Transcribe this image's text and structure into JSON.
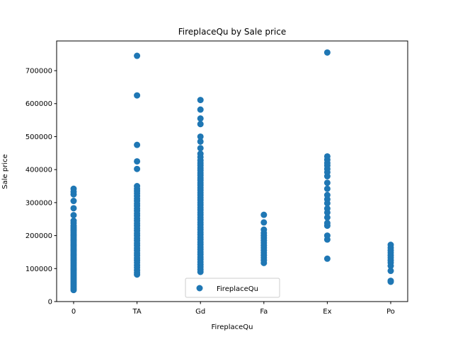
{
  "chart_data": {
    "type": "scatter",
    "title": "FireplaceQu by Sale price",
    "xlabel": "FireplaceQu",
    "ylabel": "Sale price",
    "categories": [
      "0",
      "TA",
      "Gd",
      "Fa",
      "Ex",
      "Po"
    ],
    "ylim": [
      0,
      790000
    ],
    "yticks": [
      0,
      100000,
      200000,
      300000,
      400000,
      500000,
      600000,
      700000
    ],
    "ytick_labels": [
      "0",
      "100000",
      "200000",
      "300000",
      "400000",
      "500000",
      "600000",
      "700000"
    ],
    "grid": false,
    "legend": {
      "position": "lower-center",
      "entries": [
        "FireplaceQu"
      ]
    },
    "colors": {
      "series": "#1f77b4"
    },
    "series": [
      {
        "name": "FireplaceQu",
        "points": [
          [
            "0",
            35000
          ],
          [
            "0",
            40000
          ],
          [
            "0",
            45000
          ],
          [
            "0",
            50000
          ],
          [
            "0",
            55000
          ],
          [
            "0",
            60000
          ],
          [
            "0",
            65000
          ],
          [
            "0",
            70000
          ],
          [
            "0",
            75000
          ],
          [
            "0",
            80000
          ],
          [
            "0",
            85000
          ],
          [
            "0",
            90000
          ],
          [
            "0",
            95000
          ],
          [
            "0",
            100000
          ],
          [
            "0",
            105000
          ],
          [
            "0",
            110000
          ],
          [
            "0",
            115000
          ],
          [
            "0",
            120000
          ],
          [
            "0",
            125000
          ],
          [
            "0",
            130000
          ],
          [
            "0",
            135000
          ],
          [
            "0",
            140000
          ],
          [
            "0",
            145000
          ],
          [
            "0",
            150000
          ],
          [
            "0",
            155000
          ],
          [
            "0",
            160000
          ],
          [
            "0",
            165000
          ],
          [
            "0",
            170000
          ],
          [
            "0",
            175000
          ],
          [
            "0",
            180000
          ],
          [
            "0",
            185000
          ],
          [
            "0",
            190000
          ],
          [
            "0",
            195000
          ],
          [
            "0",
            200000
          ],
          [
            "0",
            205000
          ],
          [
            "0",
            210000
          ],
          [
            "0",
            215000
          ],
          [
            "0",
            220000
          ],
          [
            "0",
            225000
          ],
          [
            "0",
            230000
          ],
          [
            "0",
            238000
          ],
          [
            "0",
            245000
          ],
          [
            "0",
            262000
          ],
          [
            "0",
            283000
          ],
          [
            "0",
            305000
          ],
          [
            "0",
            325000
          ],
          [
            "0",
            333000
          ],
          [
            "0",
            342000
          ],
          [
            "TA",
            82000
          ],
          [
            "TA",
            88000
          ],
          [
            "TA",
            95000
          ],
          [
            "TA",
            103000
          ],
          [
            "TA",
            110000
          ],
          [
            "TA",
            118000
          ],
          [
            "TA",
            125000
          ],
          [
            "TA",
            132000
          ],
          [
            "TA",
            140000
          ],
          [
            "TA",
            147000
          ],
          [
            "TA",
            155000
          ],
          [
            "TA",
            162000
          ],
          [
            "TA",
            170000
          ],
          [
            "TA",
            177000
          ],
          [
            "TA",
            185000
          ],
          [
            "TA",
            192000
          ],
          [
            "TA",
            200000
          ],
          [
            "TA",
            207000
          ],
          [
            "TA",
            215000
          ],
          [
            "TA",
            222000
          ],
          [
            "TA",
            230000
          ],
          [
            "TA",
            237000
          ],
          [
            "TA",
            245000
          ],
          [
            "TA",
            252000
          ],
          [
            "TA",
            260000
          ],
          [
            "TA",
            267000
          ],
          [
            "TA",
            275000
          ],
          [
            "TA",
            282000
          ],
          [
            "TA",
            290000
          ],
          [
            "TA",
            297000
          ],
          [
            "TA",
            305000
          ],
          [
            "TA",
            312000
          ],
          [
            "TA",
            320000
          ],
          [
            "TA",
            328000
          ],
          [
            "TA",
            335000
          ],
          [
            "TA",
            342000
          ],
          [
            "TA",
            350000
          ],
          [
            "TA",
            402000
          ],
          [
            "TA",
            425000
          ],
          [
            "TA",
            475000
          ],
          [
            "TA",
            625000
          ],
          [
            "TA",
            745000
          ],
          [
            "Gd",
            90000
          ],
          [
            "Gd",
            97000
          ],
          [
            "Gd",
            105000
          ],
          [
            "Gd",
            112000
          ],
          [
            "Gd",
            120000
          ],
          [
            "Gd",
            128000
          ],
          [
            "Gd",
            135000
          ],
          [
            "Gd",
            143000
          ],
          [
            "Gd",
            150000
          ],
          [
            "Gd",
            158000
          ],
          [
            "Gd",
            165000
          ],
          [
            "Gd",
            173000
          ],
          [
            "Gd",
            180000
          ],
          [
            "Gd",
            188000
          ],
          [
            "Gd",
            195000
          ],
          [
            "Gd",
            203000
          ],
          [
            "Gd",
            210000
          ],
          [
            "Gd",
            218000
          ],
          [
            "Gd",
            225000
          ],
          [
            "Gd",
            233000
          ],
          [
            "Gd",
            240000
          ],
          [
            "Gd",
            248000
          ],
          [
            "Gd",
            255000
          ],
          [
            "Gd",
            263000
          ],
          [
            "Gd",
            270000
          ],
          [
            "Gd",
            278000
          ],
          [
            "Gd",
            285000
          ],
          [
            "Gd",
            293000
          ],
          [
            "Gd",
            300000
          ],
          [
            "Gd",
            308000
          ],
          [
            "Gd",
            315000
          ],
          [
            "Gd",
            323000
          ],
          [
            "Gd",
            330000
          ],
          [
            "Gd",
            338000
          ],
          [
            "Gd",
            345000
          ],
          [
            "Gd",
            353000
          ],
          [
            "Gd",
            360000
          ],
          [
            "Gd",
            368000
          ],
          [
            "Gd",
            375000
          ],
          [
            "Gd",
            383000
          ],
          [
            "Gd",
            390000
          ],
          [
            "Gd",
            398000
          ],
          [
            "Gd",
            405000
          ],
          [
            "Gd",
            413000
          ],
          [
            "Gd",
            420000
          ],
          [
            "Gd",
            428000
          ],
          [
            "Gd",
            438000
          ],
          [
            "Gd",
            448000
          ],
          [
            "Gd",
            465000
          ],
          [
            "Gd",
            485000
          ],
          [
            "Gd",
            500000
          ],
          [
            "Gd",
            538000
          ],
          [
            "Gd",
            555000
          ],
          [
            "Gd",
            582000
          ],
          [
            "Gd",
            611000
          ],
          [
            "Fa",
            117000
          ],
          [
            "Fa",
            125000
          ],
          [
            "Fa",
            133000
          ],
          [
            "Fa",
            140000
          ],
          [
            "Fa",
            148000
          ],
          [
            "Fa",
            155000
          ],
          [
            "Fa",
            163000
          ],
          [
            "Fa",
            170000
          ],
          [
            "Fa",
            178000
          ],
          [
            "Fa",
            185000
          ],
          [
            "Fa",
            193000
          ],
          [
            "Fa",
            200000
          ],
          [
            "Fa",
            208000
          ],
          [
            "Fa",
            218000
          ],
          [
            "Fa",
            240000
          ],
          [
            "Fa",
            263000
          ],
          [
            "Ex",
            130000
          ],
          [
            "Ex",
            188000
          ],
          [
            "Ex",
            200000
          ],
          [
            "Ex",
            230000
          ],
          [
            "Ex",
            238000
          ],
          [
            "Ex",
            255000
          ],
          [
            "Ex",
            270000
          ],
          [
            "Ex",
            282000
          ],
          [
            "Ex",
            298000
          ],
          [
            "Ex",
            310000
          ],
          [
            "Ex",
            323000
          ],
          [
            "Ex",
            342000
          ],
          [
            "Ex",
            360000
          ],
          [
            "Ex",
            380000
          ],
          [
            "Ex",
            392000
          ],
          [
            "Ex",
            402000
          ],
          [
            "Ex",
            412000
          ],
          [
            "Ex",
            420000
          ],
          [
            "Ex",
            430000
          ],
          [
            "Ex",
            440000
          ],
          [
            "Ex",
            755000
          ],
          [
            "Po",
            60000
          ],
          [
            "Po",
            63000
          ],
          [
            "Po",
            93000
          ],
          [
            "Po",
            108000
          ],
          [
            "Po",
            118000
          ],
          [
            "Po",
            125000
          ],
          [
            "Po",
            133000
          ],
          [
            "Po",
            140000
          ],
          [
            "Po",
            148000
          ],
          [
            "Po",
            155000
          ],
          [
            "Po",
            163000
          ],
          [
            "Po",
            172000
          ]
        ]
      }
    ]
  }
}
